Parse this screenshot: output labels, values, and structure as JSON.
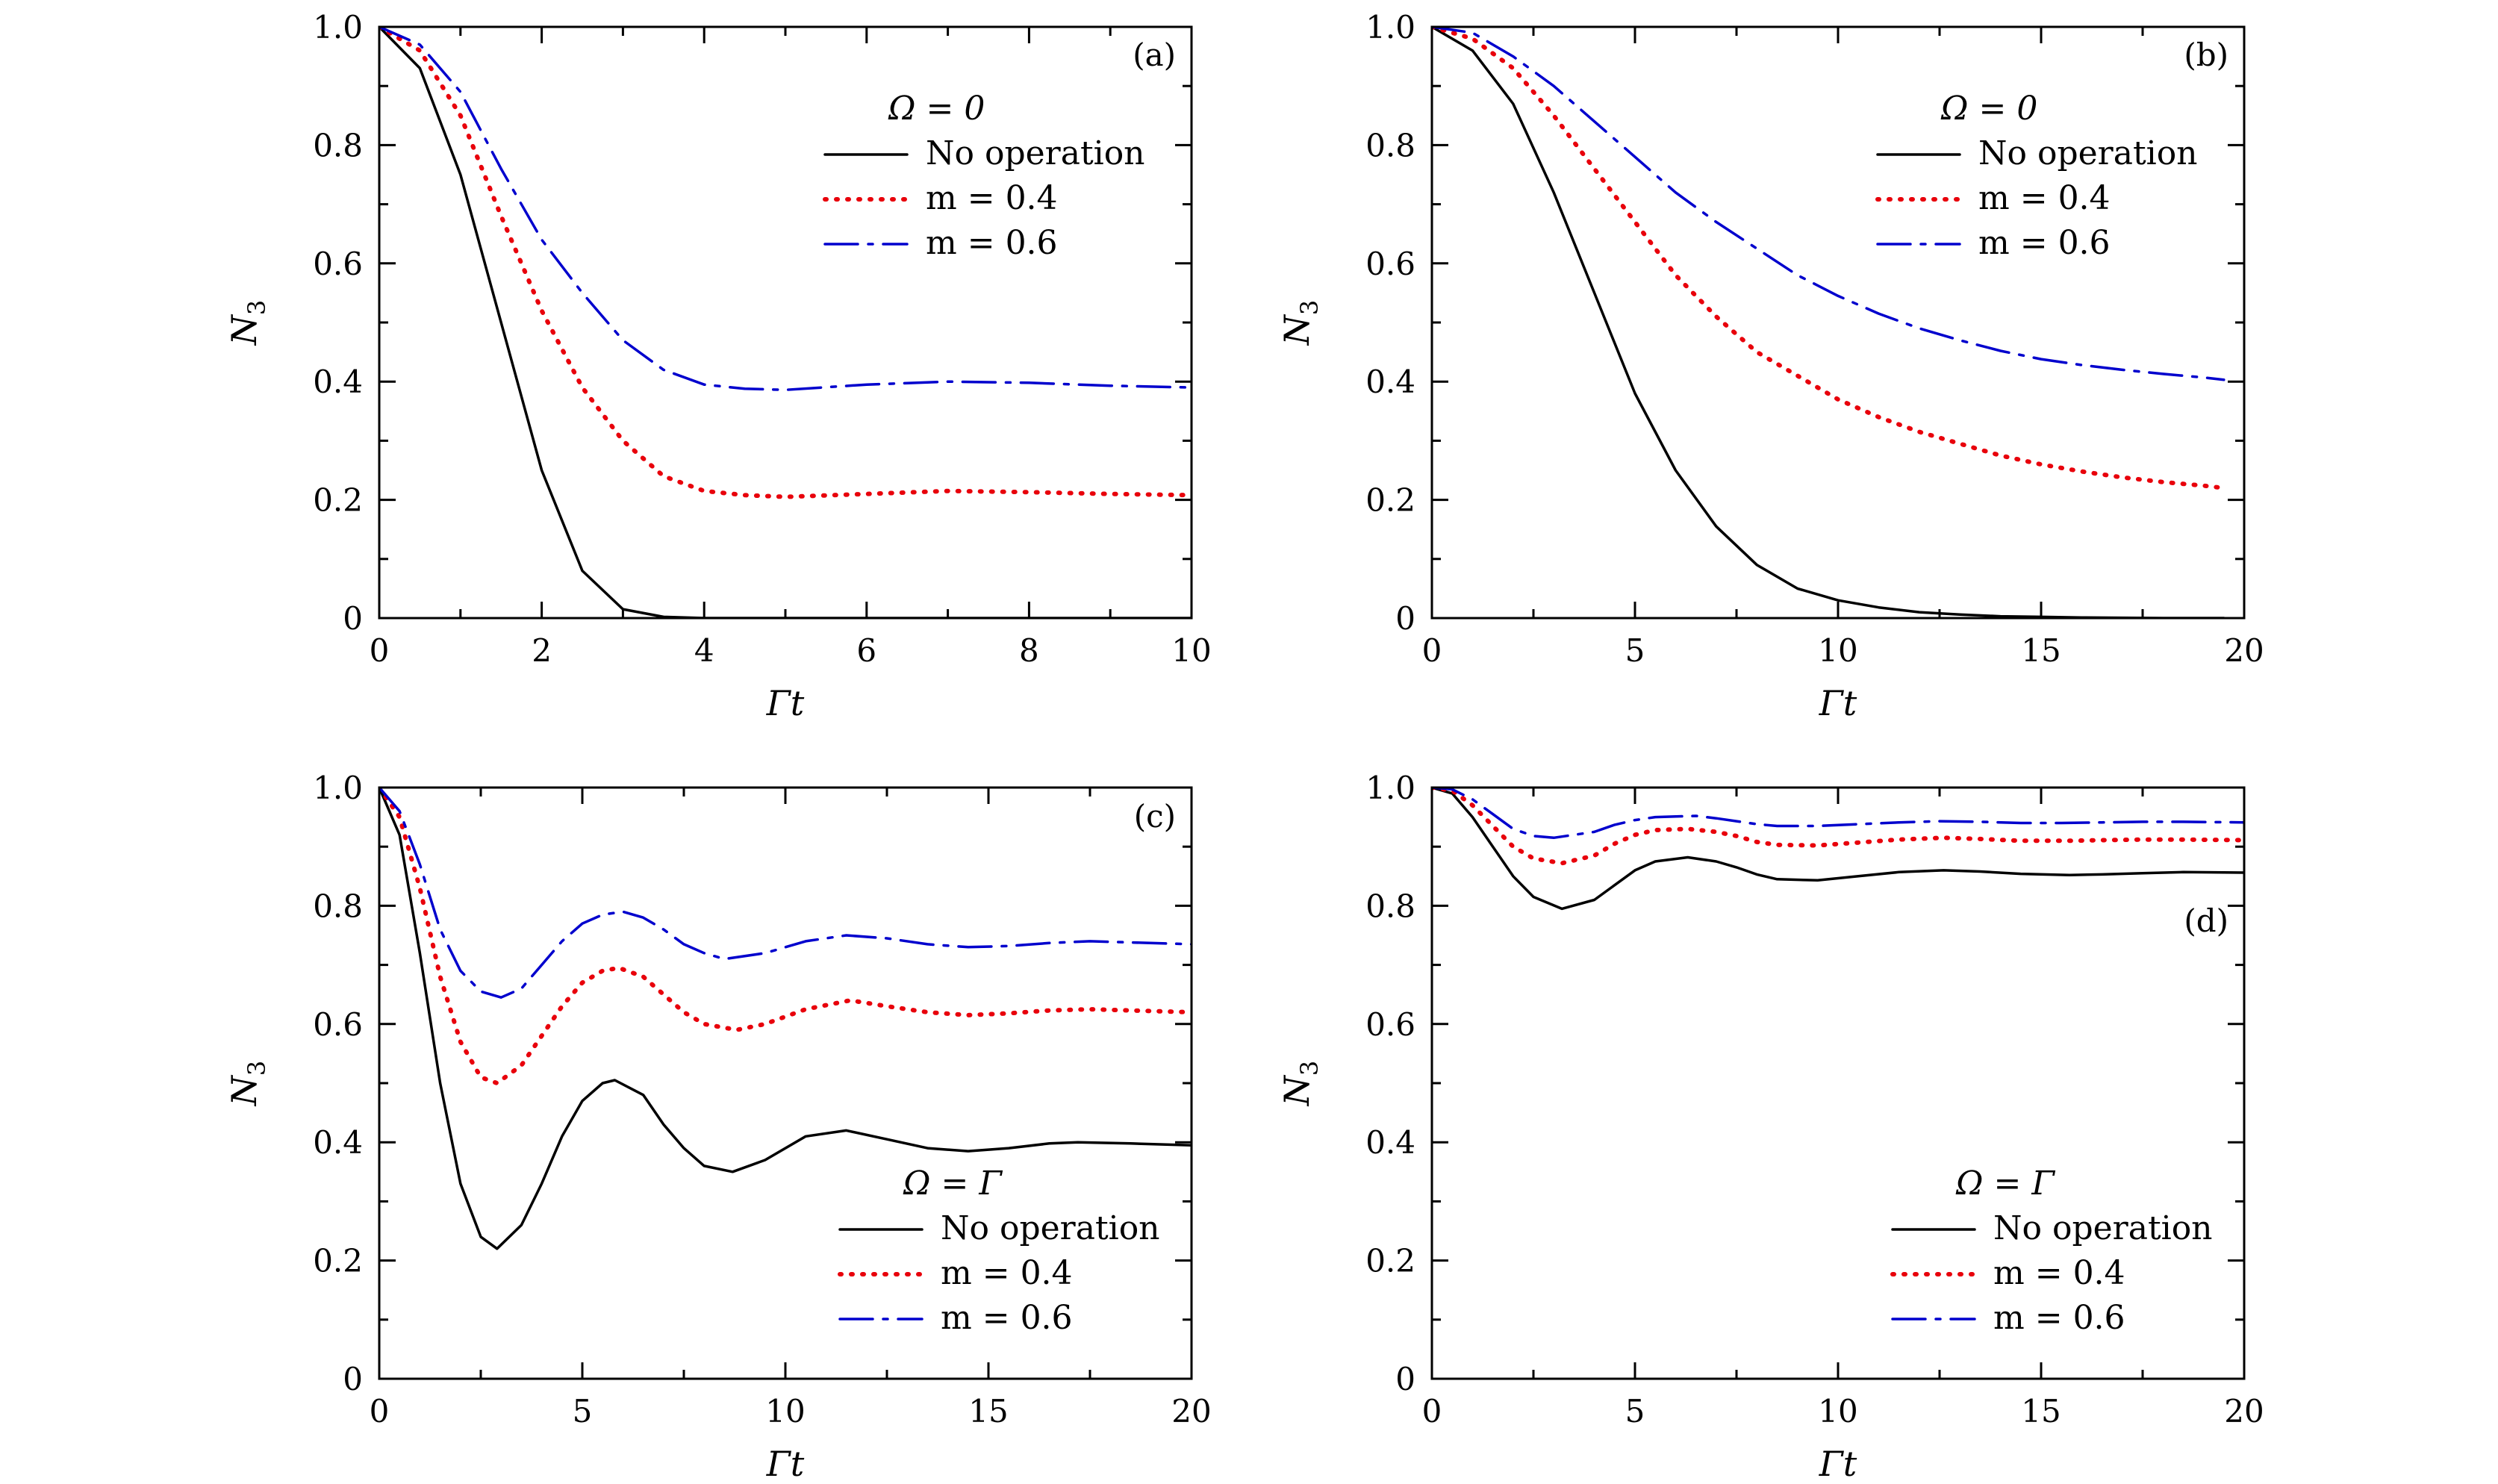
{
  "chart_data": [
    {
      "type": "line",
      "panel_label": "(a)",
      "xlabel": "Γt",
      "ylabel_main": "N",
      "ylabel_sub": "3",
      "xlim": [
        0,
        10
      ],
      "ylim": [
        0,
        1.0
      ],
      "xticks": [
        0,
        2,
        4,
        6,
        8,
        10
      ],
      "xtick_labels": [
        "0",
        "2",
        "4",
        "6",
        "8",
        "10"
      ],
      "yticks": [
        0,
        0.2,
        0.4,
        0.6,
        0.8,
        1.0
      ],
      "ytick_labels": [
        "0",
        "0.2",
        "0.4",
        "0.6",
        "0.8",
        "1.0"
      ],
      "legend_title": "Ω = 0",
      "legend_position": "top-right",
      "series": [
        {
          "name": "No operation",
          "style": "solid",
          "color": "#000000",
          "x": [
            0,
            0.5,
            1.0,
            1.5,
            2.0,
            2.5,
            3.0,
            3.5,
            4.0,
            5.0,
            6.0,
            8.0,
            10.0
          ],
          "y": [
            1.0,
            0.93,
            0.75,
            0.5,
            0.25,
            0.08,
            0.015,
            0.002,
            0.0,
            0.0,
            0.0,
            0.0,
            0.0
          ]
        },
        {
          "name": "m = 0.4",
          "style": "dotted",
          "color": "#e8000b",
          "x": [
            0,
            0.5,
            1.0,
            1.5,
            2.0,
            2.5,
            3.0,
            3.5,
            4.0,
            4.5,
            5.0,
            6.0,
            7.0,
            8.0,
            9.0,
            10.0
          ],
          "y": [
            1.0,
            0.96,
            0.85,
            0.68,
            0.52,
            0.39,
            0.3,
            0.24,
            0.215,
            0.208,
            0.205,
            0.21,
            0.215,
            0.213,
            0.21,
            0.208
          ]
        },
        {
          "name": "m = 0.6",
          "style": "dashdot",
          "color": "#0000cd",
          "x": [
            0,
            0.5,
            1.0,
            1.5,
            2.0,
            2.5,
            3.0,
            3.5,
            4.0,
            4.5,
            5.0,
            6.0,
            7.0,
            8.0,
            9.0,
            10.0
          ],
          "y": [
            1.0,
            0.97,
            0.89,
            0.76,
            0.64,
            0.55,
            0.47,
            0.42,
            0.395,
            0.388,
            0.386,
            0.395,
            0.4,
            0.398,
            0.393,
            0.39
          ]
        }
      ]
    },
    {
      "type": "line",
      "panel_label": "(b)",
      "xlabel": "Γt",
      "ylabel_main": "N",
      "ylabel_sub": "3",
      "xlim": [
        0,
        20
      ],
      "ylim": [
        0,
        1.0
      ],
      "xticks": [
        0,
        5,
        10,
        15,
        20
      ],
      "xtick_labels": [
        "0",
        "5",
        "10",
        "15",
        "20"
      ],
      "yticks": [
        0,
        0.2,
        0.4,
        0.6,
        0.8,
        1.0
      ],
      "ytick_labels": [
        "0",
        "0.2",
        "0.4",
        "0.6",
        "0.8",
        "1.0"
      ],
      "legend_title": "Ω = 0",
      "legend_position": "top-right",
      "series": [
        {
          "name": "No operation",
          "style": "solid",
          "color": "#000000",
          "x": [
            0,
            1,
            2,
            3,
            4,
            5,
            6,
            7,
            8,
            9,
            10,
            11,
            12,
            13,
            14,
            15,
            16,
            18,
            19.5
          ],
          "y": [
            1.0,
            0.96,
            0.87,
            0.72,
            0.55,
            0.38,
            0.25,
            0.155,
            0.09,
            0.05,
            0.03,
            0.018,
            0.01,
            0.006,
            0.003,
            0.002,
            0.001,
            0.0,
            0.0
          ]
        },
        {
          "name": "m = 0.4",
          "style": "dotted",
          "color": "#e8000b",
          "x": [
            0,
            1,
            2,
            3,
            4,
            5,
            6,
            7,
            8,
            9,
            10,
            11,
            12,
            13,
            14,
            15,
            16,
            17,
            18,
            19,
            19.5
          ],
          "y": [
            1.0,
            0.98,
            0.93,
            0.85,
            0.76,
            0.67,
            0.58,
            0.51,
            0.45,
            0.41,
            0.37,
            0.34,
            0.315,
            0.295,
            0.275,
            0.26,
            0.248,
            0.238,
            0.23,
            0.224,
            0.22
          ]
        },
        {
          "name": "m = 0.6",
          "style": "dashdot",
          "color": "#0000cd",
          "x": [
            0,
            1,
            2,
            3,
            4,
            5,
            6,
            7,
            8,
            9,
            10,
            11,
            12,
            13,
            14,
            15,
            16,
            17,
            18,
            19,
            19.5
          ],
          "y": [
            1.0,
            0.99,
            0.95,
            0.9,
            0.84,
            0.78,
            0.72,
            0.67,
            0.625,
            0.58,
            0.545,
            0.515,
            0.49,
            0.47,
            0.452,
            0.438,
            0.428,
            0.42,
            0.413,
            0.407,
            0.403
          ]
        }
      ]
    },
    {
      "type": "line",
      "panel_label": "(c)",
      "xlabel": "Γt",
      "ylabel_main": "N",
      "ylabel_sub": "3",
      "xlim": [
        0,
        20
      ],
      "ylim": [
        0,
        1.0
      ],
      "xticks": [
        0,
        5,
        10,
        15,
        20
      ],
      "xtick_labels": [
        "0",
        "5",
        "10",
        "15",
        "20"
      ],
      "yticks": [
        0,
        0.2,
        0.4,
        0.6,
        0.8,
        1.0
      ],
      "ytick_labels": [
        "0",
        "0.2",
        "0.4",
        "0.6",
        "0.8",
        "1.0"
      ],
      "legend_title": "Ω = Γ",
      "legend_position": "bottom-right",
      "series": [
        {
          "name": "No operation",
          "style": "solid",
          "color": "#000000",
          "x": [
            0,
            0.5,
            1.0,
            1.5,
            2.0,
            2.5,
            2.9,
            3.5,
            4.0,
            4.5,
            5.0,
            5.5,
            5.8,
            6.5,
            7.0,
            7.5,
            8.0,
            8.7,
            9.5,
            10.5,
            11.5,
            12.5,
            13.5,
            14.5,
            15.5,
            16.5,
            17.2,
            18.5,
            20.0
          ],
          "y": [
            1.0,
            0.92,
            0.72,
            0.5,
            0.33,
            0.24,
            0.22,
            0.26,
            0.33,
            0.41,
            0.47,
            0.5,
            0.505,
            0.48,
            0.43,
            0.39,
            0.36,
            0.35,
            0.37,
            0.41,
            0.42,
            0.405,
            0.39,
            0.385,
            0.39,
            0.398,
            0.4,
            0.398,
            0.395
          ]
        },
        {
          "name": "m = 0.4",
          "style": "dotted",
          "color": "#e8000b",
          "x": [
            0,
            0.5,
            1.0,
            1.5,
            2.0,
            2.5,
            2.9,
            3.5,
            4.0,
            4.5,
            5.0,
            5.5,
            5.9,
            6.5,
            7.0,
            7.5,
            8.0,
            8.8,
            9.5,
            10.5,
            11.6,
            12.5,
            13.5,
            14.5,
            15.5,
            16.5,
            17.5,
            18.5,
            20.0
          ],
          "y": [
            1.0,
            0.95,
            0.83,
            0.68,
            0.57,
            0.51,
            0.5,
            0.53,
            0.58,
            0.63,
            0.67,
            0.69,
            0.695,
            0.68,
            0.65,
            0.62,
            0.6,
            0.59,
            0.6,
            0.625,
            0.64,
            0.63,
            0.62,
            0.615,
            0.618,
            0.623,
            0.625,
            0.623,
            0.62
          ]
        },
        {
          "name": "m = 0.6",
          "style": "dashdot",
          "color": "#0000cd",
          "x": [
            0,
            0.5,
            1.0,
            1.5,
            2.0,
            2.5,
            3.0,
            3.5,
            4.0,
            4.5,
            5.0,
            5.5,
            6.0,
            6.5,
            7.0,
            7.5,
            8.0,
            8.5,
            9.5,
            10.5,
            11.5,
            12.5,
            13.5,
            14.5,
            15.5,
            16.5,
            17.5,
            18.5,
            20.0
          ],
          "y": [
            1.0,
            0.96,
            0.87,
            0.76,
            0.69,
            0.655,
            0.645,
            0.66,
            0.7,
            0.74,
            0.77,
            0.785,
            0.79,
            0.78,
            0.76,
            0.735,
            0.72,
            0.71,
            0.72,
            0.74,
            0.75,
            0.745,
            0.735,
            0.73,
            0.732,
            0.737,
            0.74,
            0.738,
            0.735
          ]
        }
      ]
    },
    {
      "type": "line",
      "panel_label": "(d)",
      "xlabel": "Γt",
      "ylabel_main": "N",
      "ylabel_sub": "3",
      "xlim": [
        0,
        20
      ],
      "ylim": [
        0,
        1.0
      ],
      "xticks": [
        0,
        5,
        10,
        15,
        20
      ],
      "xtick_labels": [
        "0",
        "5",
        "10",
        "15",
        "20"
      ],
      "yticks": [
        0,
        0.2,
        0.4,
        0.6,
        0.8,
        1.0
      ],
      "ytick_labels": [
        "0",
        "0.2",
        "0.4",
        "0.6",
        "0.8",
        "1.0"
      ],
      "legend_title": "Ω = Γ",
      "legend_position": "bottom-right",
      "series": [
        {
          "name": "No operation",
          "style": "solid",
          "color": "#000000",
          "x": [
            0,
            0.5,
            1.0,
            1.5,
            2.0,
            2.5,
            3.2,
            4.0,
            4.5,
            5.0,
            5.5,
            6.3,
            7.0,
            7.5,
            8.0,
            8.5,
            9.5,
            10.5,
            11.5,
            12.6,
            13.5,
            14.5,
            15.7,
            16.5,
            17.5,
            18.5,
            20.0
          ],
          "y": [
            1.0,
            0.99,
            0.95,
            0.9,
            0.85,
            0.815,
            0.795,
            0.81,
            0.835,
            0.86,
            0.875,
            0.882,
            0.875,
            0.865,
            0.853,
            0.845,
            0.843,
            0.85,
            0.857,
            0.86,
            0.858,
            0.854,
            0.852,
            0.853,
            0.855,
            0.857,
            0.856
          ]
        },
        {
          "name": "m = 0.4",
          "style": "dotted",
          "color": "#e8000b",
          "x": [
            0,
            0.5,
            1.0,
            1.5,
            2.0,
            2.5,
            3.2,
            4.0,
            4.5,
            5.0,
            5.5,
            6.3,
            7.0,
            7.5,
            8.0,
            8.5,
            9.5,
            10.5,
            11.5,
            12.6,
            13.5,
            14.5,
            15.7,
            16.5,
            17.5,
            18.5,
            20.0
          ],
          "y": [
            1.0,
            0.995,
            0.97,
            0.935,
            0.9,
            0.88,
            0.872,
            0.885,
            0.905,
            0.92,
            0.928,
            0.93,
            0.925,
            0.918,
            0.908,
            0.903,
            0.902,
            0.907,
            0.912,
            0.915,
            0.913,
            0.91,
            0.91,
            0.911,
            0.912,
            0.912,
            0.911
          ]
        },
        {
          "name": "m = 0.6",
          "style": "dashdot",
          "color": "#0000cd",
          "x": [
            0,
            0.5,
            1.0,
            1.5,
            2.0,
            2.5,
            3.0,
            4.0,
            4.5,
            5.0,
            5.5,
            6.5,
            7.0,
            7.5,
            8.0,
            8.5,
            9.5,
            10.5,
            11.5,
            12.5,
            13.5,
            14.5,
            15.5,
            16.5,
            17.5,
            18.5,
            20.0
          ],
          "y": [
            1.0,
            0.997,
            0.98,
            0.955,
            0.93,
            0.918,
            0.915,
            0.925,
            0.937,
            0.945,
            0.95,
            0.952,
            0.948,
            0.943,
            0.938,
            0.935,
            0.935,
            0.938,
            0.941,
            0.943,
            0.942,
            0.94,
            0.94,
            0.941,
            0.942,
            0.942,
            0.941
          ]
        }
      ]
    }
  ]
}
